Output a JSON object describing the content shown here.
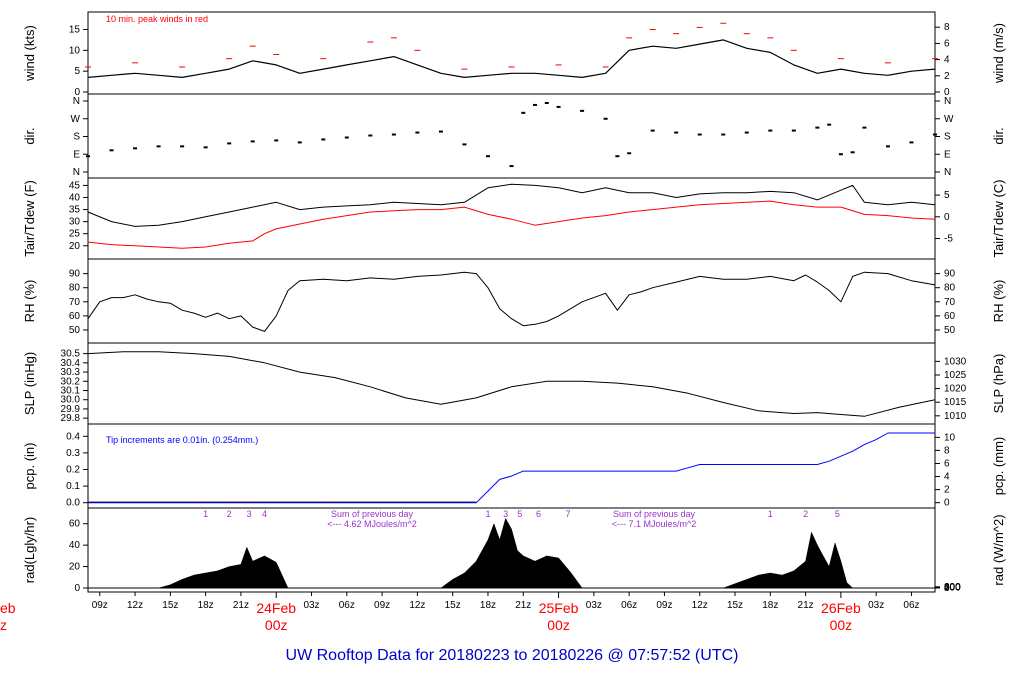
{
  "title": "UW Rooftop Data for 20180223  to  20180226 @ 07:57:52  (UTC)",
  "colors": {
    "main": "#000000",
    "red": "#ff0000",
    "blue": "#0000ff",
    "purple": "#9933cc",
    "title": "#0000cc"
  },
  "time_axis": {
    "start_hour": 8,
    "end_hour": 80,
    "tick_labels": [
      "09z",
      "12z",
      "15z",
      "18z",
      "21z",
      "03z",
      "06z",
      "09z",
      "12z",
      "15z",
      "18z",
      "21z",
      "03z",
      "06z",
      "09z",
      "12z",
      "15z",
      "18z",
      "21z",
      "03z",
      "06z"
    ],
    "day_labels": [
      {
        "date": "24Feb",
        "time": "00z"
      },
      {
        "date": "25Feb",
        "time": "00z"
      },
      {
        "date": "26Feb",
        "time": "00z"
      }
    ],
    "left_fragment": {
      "date": "eb",
      "time": "z"
    }
  },
  "chart_data": [
    {
      "type": "line",
      "name": "wind",
      "ylabel_left": "wind (kts)",
      "ylabel_right": "wind (m/s)",
      "yticks_left": [
        "0",
        "5",
        "10",
        "15"
      ],
      "yticks_right": [
        "0",
        "2",
        "4",
        "6",
        "8"
      ],
      "ylim": [
        0,
        18
      ],
      "annotation": "10 min. peak winds in red",
      "series": [
        {
          "name": "wind speed (kts)",
          "x": [
            8,
            10,
            12,
            14,
            16,
            18,
            20,
            22,
            24,
            26,
            28,
            30,
            32,
            34,
            36,
            38,
            40,
            42,
            44,
            46,
            48,
            50,
            52,
            54,
            56,
            58,
            60,
            62,
            64,
            66,
            68,
            70,
            72,
            74,
            76,
            78,
            80
          ],
          "values": [
            3.5,
            4,
            4.5,
            4,
            3.5,
            4.5,
            5.5,
            7.5,
            6.5,
            4.5,
            5.5,
            6.5,
            7.5,
            8.5,
            6.5,
            4.5,
            3.5,
            4,
            4.5,
            4.5,
            4,
            3.5,
            4.5,
            10,
            11,
            10.5,
            11.5,
            12.5,
            10.5,
            9.5,
            6.5,
            4.5,
            5.5,
            4.5,
            4,
            5,
            5.5
          ]
        },
        {
          "name": "10 min. peak winds (kts)",
          "x": [
            8,
            12,
            16,
            20,
            22,
            24,
            28,
            32,
            34,
            36,
            40,
            44,
            48,
            52,
            54,
            56,
            58,
            60,
            62,
            64,
            66,
            68,
            72,
            76,
            80
          ],
          "values": [
            6,
            7,
            6,
            8,
            11,
            9,
            8,
            12,
            13,
            10,
            5.5,
            6,
            6.5,
            6,
            13,
            15,
            14,
            15.5,
            16.5,
            14,
            13,
            10,
            8,
            7,
            8
          ]
        }
      ]
    },
    {
      "type": "scatter",
      "name": "dir",
      "ylabel_left": "dir.",
      "ylabel_right": "dir.",
      "yticks": [
        "N",
        "E",
        "S",
        "W",
        "N"
      ],
      "ylim": [
        0,
        360
      ],
      "series": [
        {
          "name": "wind direction (deg)",
          "x": [
            8,
            10,
            12,
            14,
            16,
            18,
            20,
            22,
            24,
            26,
            28,
            30,
            32,
            34,
            36,
            38,
            40,
            42,
            44,
            45,
            46,
            47,
            48,
            50,
            52,
            53,
            54,
            56,
            58,
            60,
            62,
            64,
            66,
            68,
            70,
            71,
            72,
            73,
            74,
            76,
            78,
            80
          ],
          "values": [
            80,
            110,
            120,
            130,
            130,
            125,
            145,
            155,
            160,
            150,
            165,
            175,
            185,
            190,
            200,
            205,
            140,
            80,
            30,
            300,
            340,
            350,
            330,
            310,
            270,
            80,
            95,
            210,
            200,
            190,
            190,
            200,
            210,
            210,
            225,
            240,
            90,
            100,
            225,
            130,
            150,
            190
          ]
        }
      ]
    },
    {
      "type": "line",
      "name": "temperature",
      "ylabel_left": "Tair/Tdew (F)",
      "ylabel_right": "Tair/Tdew (C)",
      "yticks_left": [
        "20",
        "25",
        "30",
        "35",
        "40",
        "45"
      ],
      "yticks_right": [
        "-5",
        "0",
        "5"
      ],
      "ylim": [
        17,
        46
      ],
      "series": [
        {
          "name": "Tair (F)",
          "x": [
            8,
            10,
            12,
            14,
            16,
            18,
            20,
            22,
            24,
            26,
            28,
            30,
            32,
            34,
            36,
            38,
            40,
            42,
            44,
            46,
            48,
            50,
            52,
            54,
            56,
            58,
            60,
            62,
            64,
            66,
            68,
            70,
            72,
            73,
            74,
            76,
            78,
            80
          ],
          "values": [
            34,
            30,
            28,
            28.5,
            30,
            32,
            34,
            36,
            38,
            35,
            36,
            36.5,
            37,
            38,
            37.5,
            37,
            38,
            44,
            45.5,
            45,
            44,
            42,
            44,
            42,
            42,
            40,
            41.5,
            42,
            42,
            42.5,
            42,
            39,
            43,
            45,
            38,
            37,
            38,
            37
          ]
        },
        {
          "name": "Tdew (F)",
          "x": [
            8,
            10,
            12,
            14,
            16,
            18,
            20,
            22,
            23,
            24,
            26,
            28,
            30,
            32,
            34,
            36,
            38,
            40,
            42,
            44,
            46,
            48,
            50,
            52,
            54,
            56,
            58,
            60,
            62,
            64,
            66,
            68,
            70,
            72,
            74,
            76,
            78,
            80
          ],
          "values": [
            21.5,
            20.5,
            20,
            19.5,
            19,
            19.5,
            21,
            22,
            25,
            27,
            29,
            31,
            32.5,
            34,
            34.5,
            35,
            35,
            36,
            33,
            31,
            28.5,
            30,
            31.5,
            32.5,
            34,
            35,
            36,
            37,
            37.5,
            38,
            38.5,
            37,
            36,
            36,
            33,
            32.5,
            31.5,
            31
          ]
        }
      ]
    },
    {
      "type": "line",
      "name": "RH",
      "ylabel_left": "RH (%)",
      "ylabel_right": "RH (%)",
      "yticks_left": [
        "50",
        "60",
        "70",
        "80",
        "90"
      ],
      "yticks_right": [
        "50",
        "60",
        "70",
        "80",
        "90"
      ],
      "ylim": [
        45,
        94
      ],
      "series": [
        {
          "name": "RH (%)",
          "x": [
            8,
            9,
            10,
            11,
            12,
            13,
            14,
            15,
            16,
            17,
            18,
            19,
            20,
            21,
            22,
            23,
            24,
            25,
            26,
            28,
            30,
            32,
            34,
            36,
            38,
            40,
            41,
            42,
            43,
            44,
            45,
            46,
            47,
            48,
            50,
            52,
            53,
            54,
            55,
            56,
            58,
            60,
            62,
            64,
            66,
            68,
            69,
            70,
            71,
            72,
            73,
            74,
            76,
            78,
            80
          ],
          "values": [
            58,
            70,
            73,
            73,
            75,
            72,
            70,
            69,
            64,
            62,
            59,
            62,
            58,
            60,
            52,
            49,
            60,
            78,
            85,
            86,
            85,
            87,
            86,
            88,
            89,
            91,
            90,
            80,
            65,
            58,
            53,
            54,
            56,
            60,
            70,
            76,
            64,
            75,
            77,
            80,
            84,
            88,
            86,
            86,
            88,
            85,
            89,
            84,
            78,
            70,
            88,
            91,
            90,
            85,
            82
          ]
        }
      ]
    },
    {
      "type": "line",
      "name": "SLP",
      "ylabel_left": "SLP (inHg)",
      "ylabel_right": "SLP (hPa)",
      "yticks_left": [
        "29.8",
        "29.9",
        "30.0",
        "30.1",
        "30.2",
        "30.3",
        "30.4",
        "30.5"
      ],
      "yticks_right": [
        "1010",
        "1015",
        "1020",
        "1025",
        "1030"
      ],
      "ylim": [
        29.78,
        30.55
      ],
      "series": [
        {
          "name": "SLP (inHg)",
          "x": [
            8,
            11,
            14,
            17,
            20,
            23,
            26,
            29,
            32,
            35,
            38,
            41,
            44,
            47,
            50,
            53,
            56,
            59,
            62,
            65,
            68,
            70,
            72,
            74,
            77,
            80
          ],
          "values": [
            30.5,
            30.52,
            30.52,
            30.5,
            30.47,
            30.4,
            30.3,
            30.24,
            30.14,
            30.02,
            29.95,
            30.02,
            30.14,
            30.2,
            30.2,
            30.18,
            30.14,
            30.07,
            29.97,
            29.88,
            29.85,
            29.86,
            29.84,
            29.82,
            29.92,
            30.0
          ]
        }
      ]
    },
    {
      "type": "line",
      "name": "precipitation",
      "ylabel_left": "pcp. (in)",
      "ylabel_right": "pcp. (mm)",
      "yticks_left": [
        "0.0",
        "0.1",
        "0.2",
        "0.3",
        "0.4"
      ],
      "yticks_right": [
        "0",
        "2",
        "4",
        "6",
        "8",
        "10"
      ],
      "ylim": [
        -0.02,
        0.45
      ],
      "annotation": "Tip increments are 0.01in. (0.254mm.)",
      "series": [
        {
          "name": "cumulative precipitation (in)",
          "x": [
            8,
            41,
            42,
            43,
            44,
            45,
            58,
            59,
            60,
            61,
            62,
            70,
            71,
            72,
            73,
            74,
            75,
            76,
            80
          ],
          "values": [
            0,
            0,
            0.07,
            0.14,
            0.16,
            0.19,
            0.19,
            0.21,
            0.23,
            0.23,
            0.23,
            0.23,
            0.25,
            0.28,
            0.31,
            0.35,
            0.38,
            0.42,
            0.42
          ]
        }
      ]
    },
    {
      "type": "area",
      "name": "radiation",
      "ylabel_left": "rad(Lgly/hr)",
      "ylabel_right": "rad (W/m^2)",
      "yticks_left": [
        "0",
        "20",
        "40",
        "60"
      ],
      "yticks_right": [
        "0",
        "200",
        "400",
        "600",
        "800"
      ],
      "ylim": [
        0,
        70
      ],
      "hour_markers": [
        {
          "label": "1",
          "hour": 18
        },
        {
          "label": "2",
          "hour": 20
        },
        {
          "label": "3",
          "hour": 21.7
        },
        {
          "label": "4",
          "hour": 23
        },
        {
          "label": "1",
          "hour": 42
        },
        {
          "label": "3",
          "hour": 43.5
        },
        {
          "label": "5",
          "hour": 44.7
        },
        {
          "label": "6",
          "hour": 46.3
        },
        {
          "label": "7",
          "hour": 48.8
        },
        {
          "label": "1",
          "hour": 66
        },
        {
          "label": "2",
          "hour": 69
        },
        {
          "label": "5",
          "hour": 71.7
        }
      ],
      "daily_sums": [
        {
          "line1": "Sum of previous day",
          "line2": "<--- 4.62 MJoules/m^2"
        },
        {
          "line1": "Sum of previous day",
          "line2": "<--- 7.1 MJoules/m^2"
        }
      ],
      "series": [
        {
          "name": "solar radiation (Lgly/hr)",
          "x": [
            14,
            15,
            16,
            17,
            18,
            19,
            20,
            21,
            21.5,
            22,
            23,
            24,
            25,
            38,
            39,
            40,
            41,
            42,
            42.5,
            43,
            43.5,
            44,
            44.5,
            45,
            46,
            47,
            48,
            49,
            50,
            62,
            63,
            64,
            65,
            66,
            67,
            68,
            69,
            69.5,
            70,
            70.5,
            71,
            71.5,
            72,
            72.5,
            73
          ],
          "values": [
            0,
            3,
            8,
            12,
            14,
            16,
            20,
            22,
            38,
            25,
            30,
            24,
            0,
            0,
            8,
            14,
            25,
            45,
            60,
            45,
            65,
            55,
            35,
            30,
            25,
            30,
            28,
            15,
            0,
            0,
            4,
            8,
            12,
            14,
            12,
            16,
            25,
            52,
            40,
            30,
            20,
            42,
            25,
            5,
            0
          ]
        }
      ]
    }
  ]
}
